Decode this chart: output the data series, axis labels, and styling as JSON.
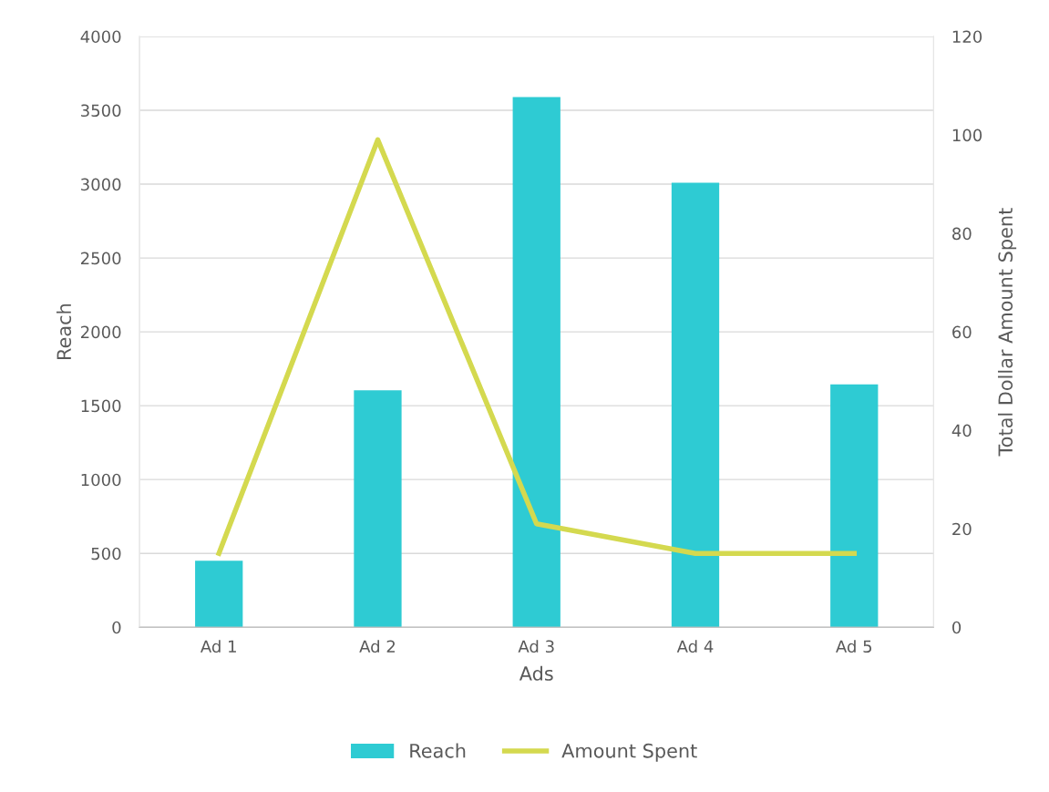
{
  "chart_data": {
    "type": "bar",
    "categories": [
      "Ad 1",
      "Ad 2",
      "Ad 3",
      "Ad 4",
      "Ad 5"
    ],
    "xlabel": "Ads",
    "ylabel": "Reach",
    "y2label": "Total Dollar Amount Spent",
    "series": [
      {
        "name": "Reach",
        "color": "#2ecbd3",
        "values": [
          450,
          1605,
          3590,
          3010,
          1645
        ]
      },
      {
        "name": "Amount Spent",
        "type": "line",
        "axis": "y2",
        "color": "#d4d94f",
        "values": [
          15,
          99,
          21,
          15,
          15
        ]
      }
    ],
    "ylim": [
      0,
      4000
    ],
    "yticks": [
      0,
      500,
      1000,
      1500,
      2000,
      2500,
      3000,
      3500,
      4000
    ],
    "y2lim": [
      0,
      120
    ],
    "y2ticks": [
      0,
      20,
      40,
      60,
      80,
      100,
      120
    ],
    "grid": "y",
    "legend": "bottom",
    "line_style": "solid",
    "marker": "none"
  }
}
